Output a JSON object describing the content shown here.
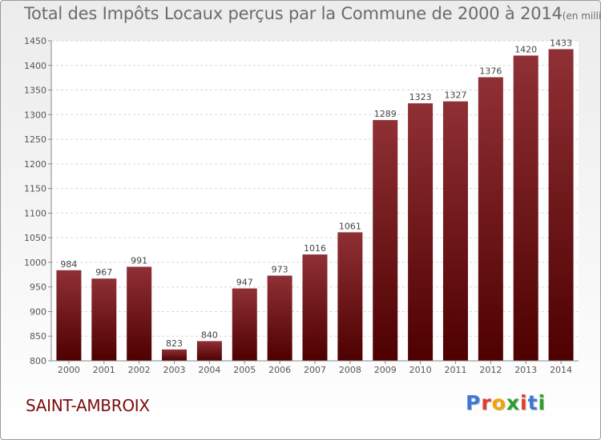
{
  "chart_data": {
    "type": "bar",
    "title": "Total des Impôts Locaux perçus par la Commune de 2000 à 2014",
    "subtitle": "(en milliers d'€)",
    "categories": [
      "2000",
      "2001",
      "2002",
      "2003",
      "2004",
      "2005",
      "2006",
      "2007",
      "2008",
      "2009",
      "2010",
      "2011",
      "2012",
      "2013",
      "2014"
    ],
    "values": [
      984,
      967,
      991,
      823,
      840,
      947,
      973,
      1016,
      1061,
      1289,
      1323,
      1327,
      1376,
      1420,
      1433
    ],
    "ylim": [
      800,
      1450
    ],
    "yticks": [
      800,
      850,
      900,
      950,
      1000,
      1050,
      1100,
      1150,
      1200,
      1250,
      1300,
      1350,
      1400,
      1450
    ],
    "xlabel": "",
    "ylabel": "",
    "grid": true,
    "data_labels": true,
    "bar_color_top": "#8f3035",
    "bar_color_bottom": "#4e0000"
  },
  "footer": {
    "commune": "SAINT-AMBROIX",
    "commune_color": "#7a0c0c",
    "brand": "Proxiti",
    "brand_colors": [
      "#3c78d8",
      "#e23b2e",
      "#f2a400",
      "#2ca02c",
      "#e23b2e",
      "#3c78d8",
      "#2ca02c"
    ]
  }
}
